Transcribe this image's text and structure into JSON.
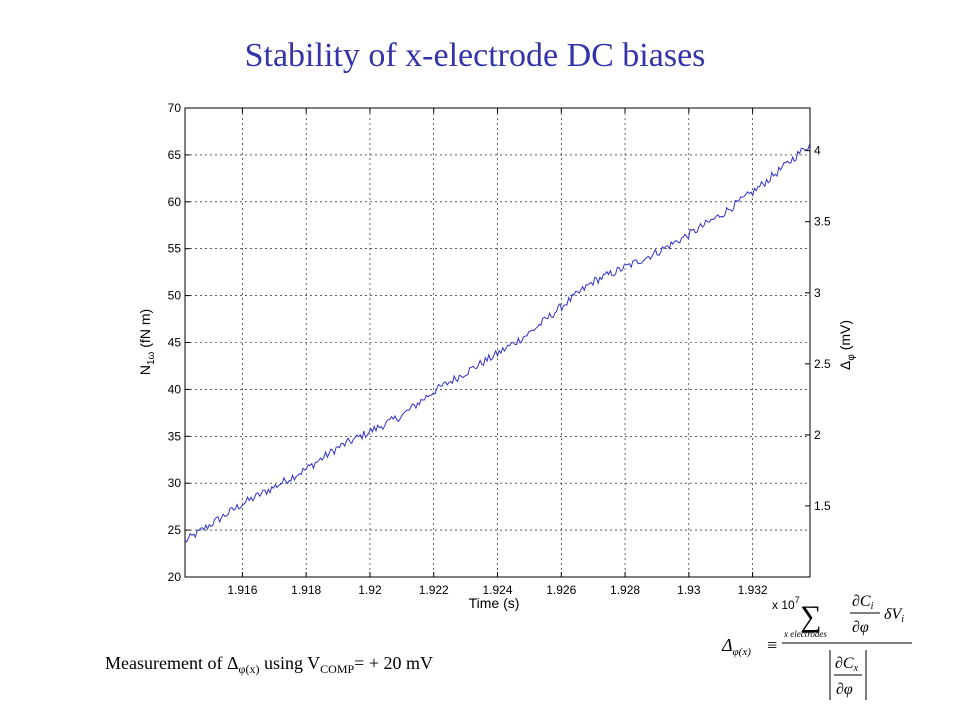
{
  "slide": {
    "title": "Stability of x-electrode DC biases",
    "caption": {
      "text_before": "Measurement of ",
      "delta": "Δ",
      "delta_sub": "φ(x)",
      "text_middle": " using V",
      "v_sub": "COMP",
      "text_after": "= + 20 mV"
    },
    "title_color": "#3333aa"
  },
  "formula": {
    "lhs_delta": "Δ",
    "lhs_sub": "φ(x)",
    "equiv": "≡",
    "sum": "∑",
    "sum_sub": "x electrodes",
    "num_partial_top": "∂C",
    "num_partial_top_sub": "i",
    "num_partial_bottom": "∂φ",
    "num_delta_v": "δV",
    "num_delta_v_sub": "i",
    "den_partial_top": "∂C",
    "den_partial_top_sub": "x",
    "den_partial_bottom": "∂φ"
  },
  "chart_data": {
    "type": "line",
    "xlabel": "Time (s)",
    "ylabel_left_main": "N",
    "ylabel_left_sub": "1ω",
    "ylabel_left_unit": " (fN m)",
    "ylabel_right_main": "Δ",
    "ylabel_right_sub": "φ",
    "ylabel_right_unit": " (mV)",
    "x_multiplier_text": "x 10",
    "x_multiplier_exp": "7",
    "xlim": [
      1.9142,
      1.9338
    ],
    "ylim_left": [
      20,
      70
    ],
    "ylim_right": [
      1.0,
      4.3
    ],
    "x_ticks": [
      1.916,
      1.918,
      1.92,
      1.922,
      1.924,
      1.926,
      1.928,
      1.93,
      1.932
    ],
    "x_tick_labels": [
      "1.916",
      "1.918",
      "1.92",
      "1.922",
      "1.924",
      "1.926",
      "1.928",
      "1.93",
      "1.932"
    ],
    "y_ticks_left": [
      20,
      25,
      30,
      35,
      40,
      45,
      50,
      55,
      60,
      65,
      70
    ],
    "y_tick_labels_left": [
      "20",
      "25",
      "30",
      "35",
      "40",
      "45",
      "50",
      "55",
      "60",
      "65",
      "70"
    ],
    "y_ticks_right": [
      1.5,
      2,
      2.5,
      3,
      3.5,
      4
    ],
    "y_tick_labels_right": [
      "1.5",
      "2",
      "2.5",
      "3",
      "3.5",
      "4"
    ],
    "grid": true,
    "line_color": "#3333cc",
    "series": [
      {
        "x": [
          1.9142,
          1.915,
          1.916,
          1.917,
          1.918,
          1.919,
          1.92,
          1.921,
          1.922,
          1.923,
          1.924,
          1.925,
          1.926,
          1.927,
          1.928,
          1.929,
          1.93,
          1.931,
          1.932,
          1.933,
          1.9338
        ],
        "values": [
          23.8,
          25.6,
          27.8,
          29.6,
          31.5,
          33.8,
          35.5,
          37.2,
          39.8,
          41.8,
          43.8,
          46.0,
          48.8,
          51.5,
          53.0,
          54.6,
          56.5,
          58.6,
          61.0,
          63.8,
          66.2
        ]
      }
    ]
  }
}
